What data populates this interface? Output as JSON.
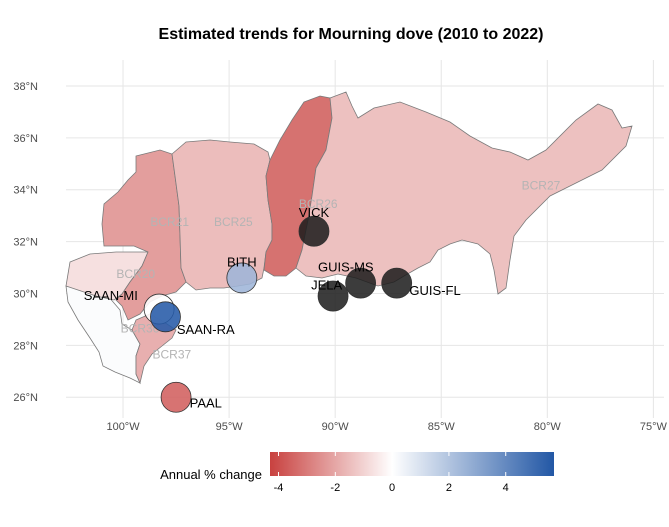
{
  "title": "Estimated trends for Mourning dove (2010 to 2022)",
  "legend": {
    "title": "Annual % change",
    "ticks": [
      -4,
      -2,
      0,
      2,
      4
    ],
    "range": [
      -4.3,
      5.7
    ],
    "colors": {
      "low": "#c8413f",
      "mid": "#ffffff",
      "high": "#2257a5"
    }
  },
  "chart_data": {
    "type": "map",
    "xlim": [
      -102.5,
      -74.5
    ],
    "ylim": [
      25.2,
      39
    ],
    "x_ticks": [
      {
        "value": -100,
        "label": "100°W"
      },
      {
        "value": -95,
        "label": "95°W"
      },
      {
        "value": -90,
        "label": "90°W"
      },
      {
        "value": -85,
        "label": "85°W"
      },
      {
        "value": -80,
        "label": "80°W"
      },
      {
        "value": -75,
        "label": "75°W"
      }
    ],
    "y_ticks": [
      {
        "value": 26,
        "label": "26°N"
      },
      {
        "value": 28,
        "label": "28°N"
      },
      {
        "value": 30,
        "label": "30°N"
      },
      {
        "value": 32,
        "label": "32°N"
      },
      {
        "value": 34,
        "label": "34°N"
      },
      {
        "value": 36,
        "label": "36°N"
      },
      {
        "value": 38,
        "label": "38°N"
      }
    ],
    "regions": [
      {
        "label": "BCR20",
        "trend": -0.7,
        "label_pos": [
          -99.4,
          30.6
        ]
      },
      {
        "label": "BCR21",
        "trend": -2.2,
        "label_pos": [
          -97.8,
          32.6
        ]
      },
      {
        "label": "BCR25",
        "trend": -1.5,
        "label_pos": [
          -94.8,
          32.6
        ]
      },
      {
        "label": "BCR26",
        "trend": -3.2,
        "label_pos": [
          -90.8,
          33.3
        ]
      },
      {
        "label": "BCR27",
        "trend": -1.4,
        "label_pos": [
          -80.3,
          34.0
        ]
      },
      {
        "label": "BCR36",
        "trend": 0.1,
        "label_pos": [
          -99.2,
          28.5
        ]
      },
      {
        "label": "BCR37",
        "trend": -1.8,
        "label_pos": [
          -97.7,
          27.5
        ]
      }
    ],
    "sites": [
      {
        "name": "VICK",
        "lon": -91.0,
        "lat": 32.4,
        "trend": -12.0,
        "label_pos": [
          -91.0,
          33.1
        ],
        "anchor": "middle"
      },
      {
        "name": "BITH",
        "lon": -94.4,
        "lat": 30.6,
        "trend": 2.5,
        "label_pos": [
          -94.4,
          31.2
        ],
        "anchor": "middle"
      },
      {
        "name": "GUIS-MS",
        "lon": -88.8,
        "lat": 30.4,
        "trend": -12.0,
        "label_pos": [
          -89.5,
          31.0
        ],
        "anchor": "middle"
      },
      {
        "name": "JELA",
        "lon": -90.1,
        "lat": 29.9,
        "trend": -12.0,
        "label_pos": [
          -90.4,
          30.3
        ],
        "anchor": "middle"
      },
      {
        "name": "GUIS-FL",
        "lon": -87.1,
        "lat": 30.4,
        "trend": -12.0,
        "label_pos": [
          -86.5,
          30.1
        ],
        "anchor": "start"
      },
      {
        "name": "SAAN-MI",
        "lon": -98.3,
        "lat": 29.4,
        "trend": 0.0,
        "label_pos": [
          -99.3,
          29.9
        ],
        "anchor": "end"
      },
      {
        "name": "SAAN-RA",
        "lon": -98.0,
        "lat": 29.1,
        "trend": 5.6,
        "label_pos": [
          -96.1,
          28.6
        ],
        "anchor": "middle"
      },
      {
        "name": "PAAL",
        "lon": -97.5,
        "lat": 26.0,
        "trend": -3.6,
        "label_pos": [
          -96.1,
          25.75
        ],
        "anchor": "middle"
      }
    ]
  }
}
